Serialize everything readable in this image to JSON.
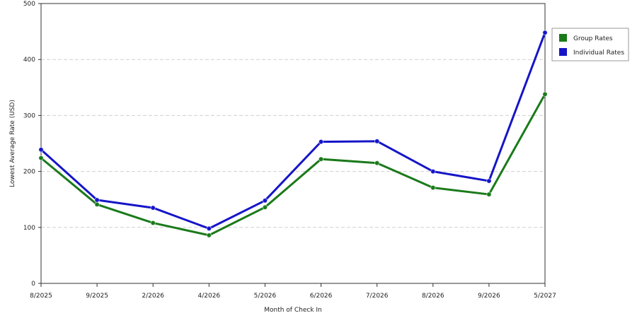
{
  "chart_data": {
    "type": "line",
    "title": "",
    "xlabel": "Month of Check In",
    "ylabel": "Lowest Average Rate (USD)",
    "categories": [
      "8/2025",
      "9/2025",
      "2/2026",
      "4/2026",
      "5/2026",
      "6/2026",
      "7/2026",
      "8/2026",
      "9/2026",
      "5/2027"
    ],
    "ylim": [
      0,
      500
    ],
    "yticks": [
      "0",
      "100",
      "200",
      "300",
      "400",
      "500"
    ],
    "grid": "horizontal dashed",
    "legend_position": "right",
    "series": [
      {
        "name": "Group Rates",
        "color": "#1a7a1a",
        "values": [
          224,
          141,
          108,
          86,
          136,
          222,
          215,
          171,
          159,
          338
        ]
      },
      {
        "name": "Individual Rates",
        "color": "#1515c8",
        "values": [
          239,
          149,
          135,
          98,
          148,
          253,
          254,
          200,
          183,
          448
        ]
      }
    ]
  }
}
